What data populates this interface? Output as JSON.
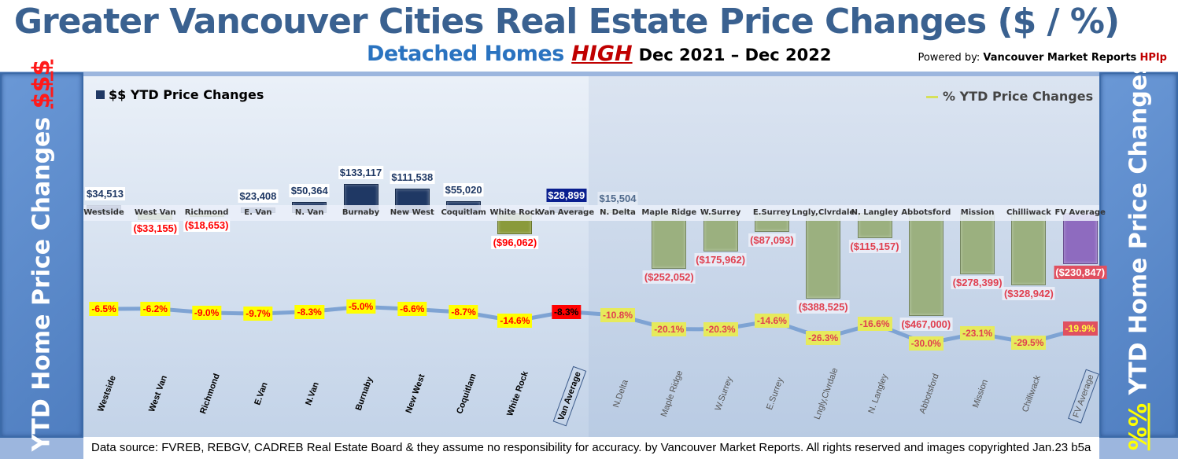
{
  "header": {
    "title": "Greater Vancouver Cities Real Estate Price Changes ($ / %)",
    "subtitle_a": "Detached Homes",
    "subtitle_b": "HIGH",
    "subtitle_c": "Dec 2021 – Dec 2022",
    "powered_prefix": "Powered by:",
    "powered_brand": "Vancouver Market Reports",
    "powered_hpi": "HPIp"
  },
  "left_panel": {
    "text": "YTD Home Price Changes",
    "accent": "$$$"
  },
  "right_panel": {
    "accent": "%%",
    "text": "YTD Home Price  Changes"
  },
  "footer": "Data source: FVREB, REBGV, CADREB Real Estate Board & they assume no responsibility for accuracy. by Vancouver Market Reports. All rights reserved and  images copyrighted Jan.23 b5a",
  "chart_data": {
    "type": "bar+line",
    "legend": [
      {
        "name": "$$ YTD Price Changes",
        "type": "bar",
        "color": "#1f3864"
      },
      {
        "name": "% YTD Price Changes",
        "type": "line",
        "color": "#d6e05a"
      }
    ],
    "categories": [
      "Westside",
      "West Van",
      "Richmond",
      "E. Van",
      "N. Van",
      "Burnaby",
      "New West",
      "Coquitlam",
      "White Rock",
      "Van Average",
      "N. Delta",
      "Maple Ridge",
      "W.Surrey",
      "E.Surrey",
      "Lngly,Clvrdale",
      "N. Langley",
      "Abbotsford",
      "Mission",
      "Chilliwack",
      "FV Average"
    ],
    "bottom_labels": [
      "Westside",
      "West Van",
      "Richmond",
      "E.Van",
      "N.Van",
      "Burnaby",
      "New West",
      "Coquitlam",
      "White Rock",
      "Van Average",
      "N.Delta",
      "Maple Ridge",
      "W.Surrey",
      "E.Surrey",
      "Lngly,Clvrdale",
      "N. Langley",
      "Abbotsford",
      "Mission",
      "Chilliwack",
      "FV Average"
    ],
    "dollar_values": [
      34513,
      -33155,
      -18653,
      23408,
      50364,
      133117,
      111538,
      55020,
      -96062,
      28899,
      15504,
      -252052,
      -175962,
      -87093,
      -388525,
      -115157,
      -467000,
      -278399,
      -328942,
      -230847
    ],
    "dollar_labels": [
      "$34,513",
      "($33,155)",
      "($18,653)",
      "$23,408",
      "$50,364",
      "$133,117",
      "$111,538",
      "$55,020",
      "($96,062)",
      "$28,899",
      "$15,504",
      "($252,052)",
      "($175,962)",
      "($87,093)",
      "($388,525)",
      "($115,157)",
      "($467,000)",
      "($278,399)",
      "($328,942)",
      "($230,847)"
    ],
    "percent_values": [
      -6.5,
      -6.2,
      -9.0,
      -9.7,
      -8.3,
      -5.0,
      -6.6,
      -8.7,
      -14.6,
      -8.3,
      -10.8,
      -20.1,
      -20.3,
      -14.6,
      -26.3,
      -16.6,
      -30.0,
      -23.1,
      -29.5,
      -19.9
    ],
    "percent_labels": [
      "-6.5%",
      "-6.2%",
      "-9.0%",
      "-9.7%",
      "-8.3%",
      "-5.0%",
      "-6.6%",
      "-8.7%",
      "-14.6%",
      "-8.3%",
      "-10.8%",
      "-20.1%",
      "-20.3%",
      "-14.6%",
      "-26.3%",
      "-16.6%",
      "-30.0%",
      "-23.1%",
      "-29.5%",
      "-19.9%"
    ],
    "colors": {
      "vancouver_positive": "#1f3864",
      "vancouver_negative": "#8a9a3a",
      "fraser_valley": "#9bb07f",
      "fv_average": "#8e6bbf",
      "line": "#7ea3d3"
    }
  }
}
